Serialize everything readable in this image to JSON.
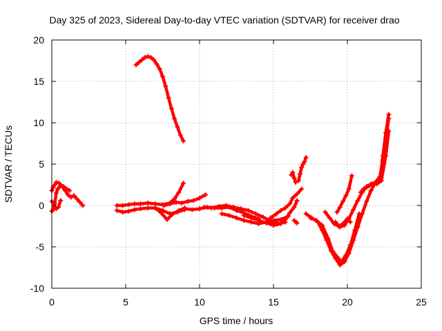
{
  "chart_data": {
    "type": "scatter",
    "title": "Day 325 of 2023, Sidereal Day-to-day VTEC variation (SDTVAR) for receiver drao",
    "xlabel": "GPS time / hours",
    "ylabel": "SDTVAR / TECUs",
    "xlim": [
      0,
      25
    ],
    "ylim": [
      -10,
      20
    ],
    "xticks": [
      0,
      5,
      10,
      15,
      20,
      25
    ],
    "yticks": [
      -10,
      -5,
      0,
      5,
      10,
      15,
      20
    ],
    "xtick_labels": [
      "0",
      "5",
      "10",
      "15",
      "20",
      "25"
    ],
    "ytick_labels": [
      "-10",
      "-5",
      "0",
      "5",
      "10",
      "15",
      "20"
    ],
    "grid": true,
    "marker": "+",
    "color": "#ff0000",
    "series": [
      {
        "name": "arc-early-1",
        "x": [
          0.0,
          0.1,
          0.2,
          0.3,
          0.5,
          0.7,
          0.9,
          1.1,
          1.3,
          1.5,
          1.7,
          1.9,
          2.1
        ],
        "y": [
          1.8,
          2.2,
          2.5,
          2.8,
          2.7,
          2.3,
          1.8,
          1.3,
          1.0,
          1.2,
          0.8,
          0.4,
          0.0
        ]
      },
      {
        "name": "arc-early-2",
        "x": [
          0.0,
          0.1,
          0.2,
          0.3,
          0.4,
          0.6,
          0.8,
          1.0,
          1.2
        ],
        "y": [
          -0.7,
          -0.5,
          0.2,
          1.5,
          2.0,
          2.4,
          2.3,
          2.0,
          1.8
        ]
      },
      {
        "name": "arc-early-3",
        "x": [
          0.0,
          0.15,
          0.3,
          0.45,
          0.6
        ],
        "y": [
          0.5,
          0.2,
          -0.4,
          -0.2,
          0.6
        ]
      },
      {
        "name": "arc-high",
        "x": [
          5.7,
          5.9,
          6.1,
          6.3,
          6.5,
          6.7,
          6.9,
          7.1,
          7.3,
          7.5,
          7.7,
          7.9,
          8.1,
          8.3,
          8.5,
          8.7,
          8.9
        ],
        "y": [
          17.0,
          17.3,
          17.6,
          17.9,
          18.0,
          17.9,
          17.6,
          17.1,
          16.5,
          15.6,
          14.4,
          13.0,
          11.7,
          10.5,
          9.5,
          8.5,
          7.8
        ]
      },
      {
        "name": "arc-mid-upper",
        "x": [
          4.4,
          4.8,
          5.2,
          5.6,
          6.0,
          6.5,
          7.0,
          7.5,
          8.0,
          8.3,
          8.6,
          8.9
        ],
        "y": [
          0.0,
          0.0,
          0.1,
          0.2,
          0.2,
          0.3,
          0.2,
          0.1,
          0.3,
          0.8,
          1.6,
          2.7
        ]
      },
      {
        "name": "arc-mid-lower",
        "x": [
          4.4,
          4.8,
          5.2,
          5.6,
          6.0,
          6.5,
          7.0,
          7.5,
          8.0,
          8.5,
          9.0
        ],
        "y": [
          -0.6,
          -0.8,
          -0.7,
          -0.5,
          -0.4,
          -0.3,
          -0.3,
          -0.6,
          -1.0,
          -0.8,
          -0.5
        ]
      },
      {
        "name": "arc-mid-2",
        "x": [
          7.6,
          8.0,
          8.4,
          8.8,
          9.2,
          9.6,
          10.0,
          10.4
        ],
        "y": [
          0.0,
          0.2,
          0.4,
          0.3,
          0.5,
          0.6,
          0.9,
          1.3
        ]
      },
      {
        "name": "arc-mid-3",
        "x": [
          7.0,
          7.4,
          7.8,
          8.2,
          8.6,
          9.0
        ],
        "y": [
          -0.3,
          -0.9,
          -1.7,
          -1.0,
          -0.6,
          -0.3
        ]
      },
      {
        "name": "arc-mid-4",
        "x": [
          9.0,
          9.5,
          10.0,
          10.5,
          11.0,
          11.5,
          12.0,
          12.5,
          13.0,
          13.5,
          14.0
        ],
        "y": [
          -0.4,
          -0.5,
          -0.4,
          -0.2,
          -0.3,
          -0.3,
          -0.2,
          -0.6,
          -0.9,
          -1.3,
          -1.6
        ]
      },
      {
        "name": "arc-mid-5",
        "x": [
          11.5,
          12.0,
          12.5,
          13.0,
          13.5,
          14.0,
          14.5,
          15.0,
          15.5,
          16.0
        ],
        "y": [
          -1.0,
          -1.2,
          -1.5,
          -1.8,
          -2.0,
          -2.2,
          -2.0,
          -1.8,
          -1.7,
          -1.3
        ]
      },
      {
        "name": "arc-mid-6",
        "x": [
          10.3,
          10.8,
          11.3,
          11.8,
          12.3,
          12.8,
          13.3,
          13.8,
          14.3,
          14.8,
          15.3,
          15.8
        ],
        "y": [
          -0.2,
          -0.3,
          -0.1,
          0.0,
          -0.2,
          -0.4,
          -0.6,
          -1.0,
          -1.4,
          -1.9,
          -2.2,
          -2.0
        ]
      },
      {
        "name": "arc-mid-7",
        "x": [
          13.0,
          13.5,
          14.0,
          14.5,
          15.0,
          15.5,
          15.8,
          16.1,
          16.4,
          16.6
        ],
        "y": [
          -1.2,
          -1.5,
          -1.8,
          -2.1,
          -2.4,
          -2.2,
          -1.7,
          -0.9,
          -0.2,
          0.6
        ]
      },
      {
        "name": "arc-mid-8",
        "x": [
          14.8,
          15.2,
          15.5,
          15.8,
          16.1,
          16.3,
          16.6,
          16.9
        ],
        "y": [
          -1.5,
          -1.0,
          -0.6,
          -0.3,
          0.2,
          0.9,
          1.4,
          2.0
        ]
      },
      {
        "name": "arc-late-1",
        "x": [
          16.2,
          16.3,
          16.4,
          16.5
        ],
        "y": [
          3.7,
          4.0,
          3.3,
          2.8
        ]
      },
      {
        "name": "arc-late-2",
        "x": [
          16.7,
          16.8,
          16.9,
          17.0,
          17.1,
          17.2
        ],
        "y": [
          3.0,
          3.8,
          4.6,
          5.0,
          5.3,
          5.8
        ]
      },
      {
        "name": "arc-late-3",
        "x": [
          16.4,
          16.5,
          16.6
        ],
        "y": [
          -1.8,
          -2.0,
          -2.1
        ]
      },
      {
        "name": "arc-late-4",
        "x": [
          17.2,
          17.6,
          18.0,
          18.3,
          18.6,
          18.9,
          19.2,
          19.5,
          19.8,
          20.1,
          20.4,
          20.7,
          21.0,
          21.3,
          21.6,
          21.9,
          22.2,
          22.4,
          22.6,
          22.8
        ],
        "y": [
          -1.0,
          -1.5,
          -2.0,
          -3.0,
          -4.2,
          -5.5,
          -6.4,
          -7.2,
          -6.8,
          -5.8,
          -4.2,
          -2.6,
          -1.0,
          0.5,
          1.8,
          2.8,
          3.5,
          5.5,
          8.0,
          10.5
        ]
      },
      {
        "name": "arc-late-5",
        "x": [
          17.5,
          17.9,
          18.3,
          18.7,
          19.0,
          19.3,
          19.6,
          19.9,
          20.2,
          20.5,
          20.8
        ],
        "y": [
          -1.5,
          -1.8,
          -2.4,
          -4.0,
          -5.5,
          -6.2,
          -6.8,
          -6.0,
          -4.8,
          -3.0,
          -1.0
        ]
      },
      {
        "name": "arc-late-6",
        "x": [
          18.5,
          18.8,
          19.1,
          19.4,
          19.7,
          20.0,
          20.2
        ],
        "y": [
          -0.8,
          -1.5,
          -2.2,
          -2.5,
          -2.2,
          -1.6,
          -2.0
        ]
      },
      {
        "name": "arc-late-7",
        "x": [
          19.2,
          19.5,
          19.8,
          20.1,
          20.4,
          20.7,
          21.0,
          21.3,
          21.6,
          21.9,
          22.2,
          22.4,
          22.6,
          22.8
        ],
        "y": [
          -2.0,
          -2.6,
          -2.4,
          -1.6,
          -0.5,
          0.6,
          1.6,
          2.3,
          2.6,
          2.8,
          3.0,
          6.0,
          8.8,
          11.0
        ]
      },
      {
        "name": "arc-late-8",
        "x": [
          19.3,
          19.5,
          19.7,
          19.9,
          20.1,
          20.3
        ],
        "y": [
          -0.8,
          -0.2,
          0.5,
          1.2,
          2.0,
          3.6
        ]
      },
      {
        "name": "arc-late-9",
        "x": [
          20.9,
          21.1,
          21.3,
          21.5,
          21.8,
          22.0,
          22.3,
          22.6,
          22.8
        ],
        "y": [
          1.6,
          2.0,
          2.2,
          2.4,
          2.6,
          2.6,
          3.0,
          6.0,
          9.0
        ]
      }
    ]
  }
}
